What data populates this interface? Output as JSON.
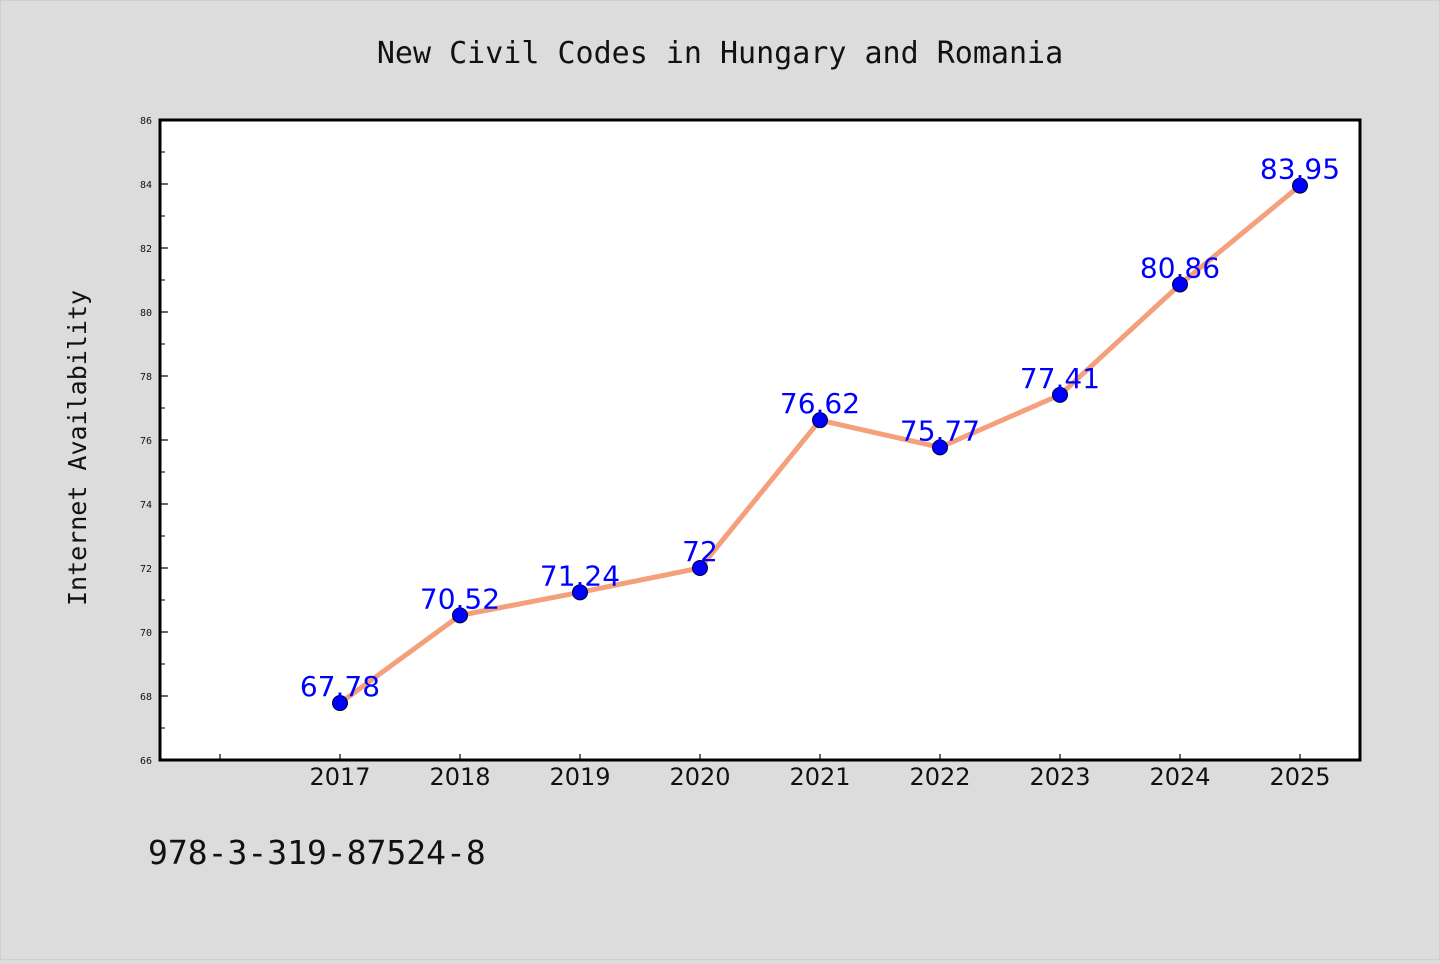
{
  "chart_data": {
    "type": "line",
    "title": "New Civil Codes in Hungary and Romania",
    "xlabel": "",
    "ylabel": "Internet Availability",
    "categories": [
      "2017",
      "2018",
      "2019",
      "2020",
      "2021",
      "2022",
      "2023",
      "2024",
      "2025"
    ],
    "values": [
      67.78,
      70.52,
      71.24,
      72,
      76.62,
      75.77,
      77.41,
      80.86,
      83.95
    ],
    "data_labels": [
      "67.78",
      "70.52",
      "71.24",
      "72",
      "76.62",
      "75.77",
      "77.41",
      "80.86",
      "83.95"
    ],
    "ylim": [
      66,
      86
    ],
    "y_ticks": [
      "66",
      "68",
      "70",
      "72",
      "74",
      "76",
      "78",
      "80",
      "82",
      "84",
      "86"
    ],
    "grid": false,
    "legend": "none"
  },
  "footer": {
    "isbn": "978-3-319-87524-8"
  },
  "colors": {
    "background": "#dcdcdc",
    "plot_area": "#ffffff",
    "line": "#f4a07c",
    "marker": "#0000ff",
    "data_label": "#0000ff",
    "text": "#111111"
  }
}
